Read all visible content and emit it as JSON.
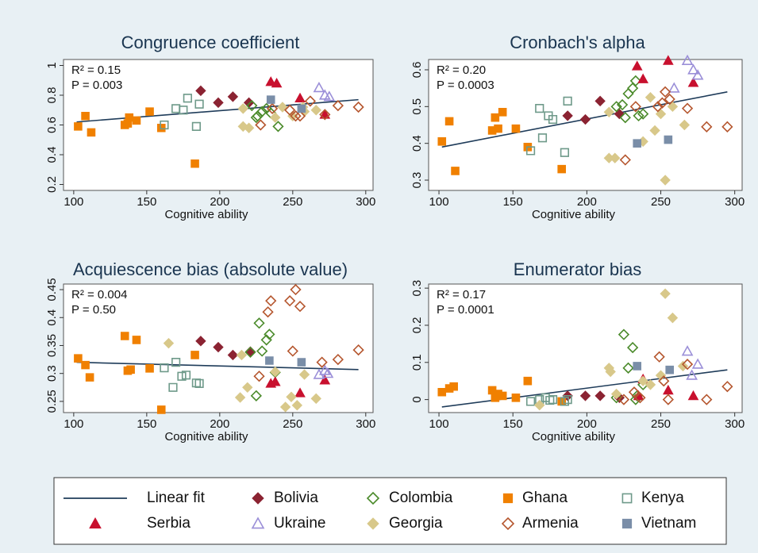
{
  "chart_data": [
    {
      "type": "scatter",
      "title": "Congruence coefficient",
      "xlabel": "Cognitive ability",
      "annotations": [
        "R² = 0.15",
        "P = 0.003"
      ],
      "xlim": [
        93,
        305
      ],
      "ylim": [
        0.16,
        1.04
      ],
      "xticks": [
        100,
        150,
        200,
        250,
        300
      ],
      "yticks": [
        0.2,
        0.4,
        0.6,
        0.8,
        1
      ],
      "fit": {
        "name": "Linear fit",
        "color": "#1f3c5a",
        "x": [
          102,
          295
        ],
        "y": [
          0.62,
          0.77
        ]
      },
      "series": [
        {
          "name": "Bolivia",
          "color": "#8b2332",
          "marker": "diamond",
          "filled": true,
          "x": [
            187,
            199,
            209,
            220
          ],
          "y": [
            0.83,
            0.75,
            0.79,
            0.75
          ]
        },
        {
          "name": "Colombia",
          "color": "#4a8a2a",
          "marker": "diamond",
          "filled": false,
          "x": [
            222,
            225,
            229,
            232,
            235,
            240,
            226
          ],
          "y": [
            0.73,
            0.65,
            0.69,
            0.71,
            0.68,
            0.59,
            0.66
          ]
        },
        {
          "name": "Ghana",
          "color": "#f08000",
          "marker": "square",
          "filled": true,
          "x": [
            103,
            108,
            112,
            135,
            138,
            143,
            152,
            160,
            183,
            137
          ],
          "y": [
            0.59,
            0.66,
            0.55,
            0.6,
            0.65,
            0.63,
            0.69,
            0.58,
            0.34,
            0.61
          ]
        },
        {
          "name": "Kenya",
          "color": "#6f9a8a",
          "marker": "square",
          "filled": false,
          "x": [
            162,
            170,
            175,
            178,
            184,
            186
          ],
          "y": [
            0.6,
            0.71,
            0.7,
            0.78,
            0.59,
            0.74
          ]
        },
        {
          "name": "Serbia",
          "color": "#c8102e",
          "marker": "triangle",
          "filled": true,
          "x": [
            235,
            239,
            255,
            272
          ],
          "y": [
            0.89,
            0.88,
            0.78,
            0.67
          ]
        },
        {
          "name": "Ukraine",
          "color": "#9b8fd8",
          "marker": "triangle",
          "filled": false,
          "x": [
            268,
            272,
            275
          ],
          "y": [
            0.85,
            0.8,
            0.79
          ]
        },
        {
          "name": "Georgia",
          "color": "#d8c88a",
          "marker": "diamond",
          "filled": true,
          "x": [
            216,
            220,
            216,
            238,
            243,
            250,
            257,
            258,
            266
          ],
          "y": [
            0.59,
            0.58,
            0.71,
            0.65,
            0.72,
            0.66,
            0.72,
            0.69,
            0.7
          ]
        },
        {
          "name": "Armenia",
          "color": "#b5562e",
          "marker": "diamond",
          "filled": false,
          "x": [
            228,
            236,
            248,
            252,
            255,
            262,
            272,
            281,
            295
          ],
          "y": [
            0.6,
            0.71,
            0.7,
            0.66,
            0.66,
            0.76,
            0.67,
            0.73,
            0.72
          ]
        },
        {
          "name": "Vietnam",
          "color": "#7a8ea8",
          "marker": "square",
          "filled": true,
          "x": [
            235,
            256
          ],
          "y": [
            0.77,
            0.71
          ]
        }
      ]
    },
    {
      "type": "scatter",
      "title": "Cronbach's alpha",
      "xlabel": "Cognitive ability",
      "annotations": [
        "R² = 0.20",
        "P = 0.0003"
      ],
      "xlim": [
        93,
        305
      ],
      "ylim": [
        0.272,
        0.628
      ],
      "xticks": [
        100,
        150,
        200,
        250,
        300
      ],
      "yticks": [
        0.3,
        0.4,
        0.5,
        0.6
      ],
      "fit": {
        "name": "Linear fit",
        "color": "#1f3c5a",
        "x": [
          102,
          295
        ],
        "y": [
          0.39,
          0.54
        ]
      },
      "series": [
        {
          "name": "Bolivia",
          "color": "#8b2332",
          "marker": "diamond",
          "filled": true,
          "x": [
            187,
            199,
            209,
            222
          ],
          "y": [
            0.475,
            0.465,
            0.515,
            0.48
          ]
        },
        {
          "name": "Colombia",
          "color": "#4a8a2a",
          "marker": "diamond",
          "filled": false,
          "x": [
            220,
            224,
            226,
            228,
            231,
            233,
            235,
            238
          ],
          "y": [
            0.5,
            0.505,
            0.47,
            0.535,
            0.55,
            0.57,
            0.475,
            0.48
          ]
        },
        {
          "name": "Ghana",
          "color": "#f08000",
          "marker": "square",
          "filled": true,
          "x": [
            102,
            107,
            111,
            136,
            138,
            140,
            143,
            152,
            160,
            183
          ],
          "y": [
            0.405,
            0.46,
            0.325,
            0.435,
            0.47,
            0.44,
            0.485,
            0.44,
            0.39,
            0.33
          ]
        },
        {
          "name": "Kenya",
          "color": "#6f9a8a",
          "marker": "square",
          "filled": false,
          "x": [
            162,
            168,
            170,
            174,
            177,
            185,
            187
          ],
          "y": [
            0.38,
            0.495,
            0.415,
            0.475,
            0.465,
            0.375,
            0.515
          ]
        },
        {
          "name": "Serbia",
          "color": "#c8102e",
          "marker": "triangle",
          "filled": true,
          "x": [
            234,
            238,
            255,
            272
          ],
          "y": [
            0.61,
            0.575,
            0.625,
            0.565
          ]
        },
        {
          "name": "Ukraine",
          "color": "#9b8fd8",
          "marker": "triangle",
          "filled": false,
          "x": [
            259,
            268,
            272,
            275
          ],
          "y": [
            0.55,
            0.625,
            0.6,
            0.585
          ]
        },
        {
          "name": "Georgia",
          "color": "#d8c88a",
          "marker": "diamond",
          "filled": true,
          "x": [
            215,
            219,
            215,
            238,
            243,
            246,
            250,
            253,
            258,
            266
          ],
          "y": [
            0.36,
            0.36,
            0.485,
            0.405,
            0.525,
            0.435,
            0.48,
            0.3,
            0.5,
            0.45
          ]
        },
        {
          "name": "Armenia",
          "color": "#b5562e",
          "marker": "diamond",
          "filled": false,
          "x": [
            226,
            233,
            248,
            251,
            253,
            256,
            268,
            281,
            295
          ],
          "y": [
            0.355,
            0.5,
            0.5,
            0.51,
            0.54,
            0.52,
            0.495,
            0.445,
            0.445
          ]
        },
        {
          "name": "Vietnam",
          "color": "#7a8ea8",
          "marker": "square",
          "filled": true,
          "x": [
            234,
            255
          ],
          "y": [
            0.4,
            0.41
          ]
        }
      ]
    },
    {
      "type": "scatter",
      "title": "Acquiescence bias (absolute value)",
      "xlabel": "Cognitive ability",
      "annotations": [
        "R² = 0.004",
        "P = 0.50"
      ],
      "xlim": [
        93,
        305
      ],
      "ylim": [
        0.23,
        0.46
      ],
      "xticks": [
        100,
        150,
        200,
        250,
        300
      ],
      "yticks": [
        0.25,
        0.3,
        0.35,
        0.4,
        0.45
      ],
      "fit": {
        "name": "Linear fit",
        "color": "#1f3c5a",
        "x": [
          102,
          295
        ],
        "y": [
          0.32,
          0.307
        ]
      },
      "series": [
        {
          "name": "Bolivia",
          "color": "#8b2332",
          "marker": "diamond",
          "filled": true,
          "x": [
            187,
            199,
            209,
            221
          ],
          "y": [
            0.358,
            0.347,
            0.333,
            0.339
          ]
        },
        {
          "name": "Colombia",
          "color": "#4a8a2a",
          "marker": "diamond",
          "filled": false,
          "x": [
            221,
            225,
            227,
            229,
            232,
            234,
            238
          ],
          "y": [
            0.338,
            0.26,
            0.39,
            0.34,
            0.36,
            0.37,
            0.302
          ]
        },
        {
          "name": "Ghana",
          "color": "#f08000",
          "marker": "square",
          "filled": true,
          "x": [
            103,
            108,
            111,
            135,
            137,
            139,
            143,
            152,
            160,
            183
          ],
          "y": [
            0.327,
            0.315,
            0.293,
            0.367,
            0.305,
            0.307,
            0.36,
            0.309,
            0.235,
            0.333
          ]
        },
        {
          "name": "Kenya",
          "color": "#6f9a8a",
          "marker": "square",
          "filled": false,
          "x": [
            162,
            168,
            170,
            174,
            177,
            184,
            186
          ],
          "y": [
            0.31,
            0.275,
            0.32,
            0.295,
            0.297,
            0.283,
            0.282
          ]
        },
        {
          "name": "Serbia",
          "color": "#c8102e",
          "marker": "triangle",
          "filled": true,
          "x": [
            235,
            238,
            255,
            272
          ],
          "y": [
            0.282,
            0.285,
            0.265,
            0.288
          ]
        },
        {
          "name": "Ukraine",
          "color": "#9b8fd8",
          "marker": "triangle",
          "filled": false,
          "x": [
            268,
            272,
            274
          ],
          "y": [
            0.298,
            0.305,
            0.3
          ]
        },
        {
          "name": "Georgia",
          "color": "#d8c88a",
          "marker": "diamond",
          "filled": true,
          "x": [
            165,
            215,
            214,
            219,
            238,
            245,
            249,
            253,
            258,
            266
          ],
          "y": [
            0.354,
            0.333,
            0.257,
            0.275,
            0.303,
            0.24,
            0.258,
            0.243,
            0.298,
            0.255
          ]
        },
        {
          "name": "Armenia",
          "color": "#b5562e",
          "marker": "diamond",
          "filled": false,
          "x": [
            227,
            233,
            235,
            248,
            250,
            252,
            255,
            270,
            281,
            295
          ],
          "y": [
            0.295,
            0.41,
            0.43,
            0.43,
            0.34,
            0.45,
            0.42,
            0.32,
            0.325,
            0.342
          ]
        },
        {
          "name": "Vietnam",
          "color": "#7a8ea8",
          "marker": "square",
          "filled": true,
          "x": [
            234,
            256
          ],
          "y": [
            0.323,
            0.32
          ]
        }
      ]
    },
    {
      "type": "scatter",
      "title": "Enumerator bias",
      "xlabel": "Cognitive ability",
      "annotations": [
        "R² = 0.17",
        "P = 0.0001"
      ],
      "xlim": [
        93,
        305
      ],
      "ylim": [
        -0.035,
        0.311
      ],
      "xticks": [
        100,
        150,
        200,
        250,
        300
      ],
      "yticks": [
        0,
        0.1,
        0.2,
        0.3
      ],
      "fit": {
        "name": "Linear fit",
        "color": "#1f3c5a",
        "x": [
          102,
          295
        ],
        "y": [
          -0.02,
          0.08
        ]
      },
      "series": [
        {
          "name": "Bolivia",
          "color": "#8b2332",
          "marker": "diamond",
          "filled": true,
          "x": [
            187,
            199,
            209,
            222
          ],
          "y": [
            0.01,
            0.01,
            0.01,
            0.005
          ]
        },
        {
          "name": "Colombia",
          "color": "#4a8a2a",
          "marker": "diamond",
          "filled": false,
          "x": [
            220,
            225,
            228,
            231,
            234,
            238,
            233
          ],
          "y": [
            0.005,
            0.175,
            0.085,
            0.14,
            0.01,
            0.04,
            0.0
          ]
        },
        {
          "name": "Ghana",
          "color": "#f08000",
          "marker": "square",
          "filled": true,
          "x": [
            102,
            107,
            110,
            136,
            138,
            140,
            143,
            152,
            160,
            183
          ],
          "y": [
            0.02,
            0.03,
            0.035,
            0.025,
            0.005,
            0.015,
            0.01,
            0.005,
            0.05,
            -0.005
          ]
        },
        {
          "name": "Kenya",
          "color": "#6f9a8a",
          "marker": "square",
          "filled": false,
          "x": [
            162,
            168,
            172,
            175,
            177,
            185,
            187
          ],
          "y": [
            -0.005,
            0.0,
            0.005,
            -0.002,
            0.0,
            -0.005,
            0.0
          ]
        },
        {
          "name": "Serbia",
          "color": "#c8102e",
          "marker": "triangle",
          "filled": true,
          "x": [
            235,
            238,
            255,
            272
          ],
          "y": [
            0.01,
            0.055,
            0.025,
            0.01
          ]
        },
        {
          "name": "Ukraine",
          "color": "#9b8fd8",
          "marker": "triangle",
          "filled": false,
          "x": [
            268,
            271,
            275
          ],
          "y": [
            0.13,
            0.065,
            0.095
          ]
        },
        {
          "name": "Georgia",
          "color": "#d8c88a",
          "marker": "diamond",
          "filled": true,
          "x": [
            168,
            215,
            216,
            220,
            238,
            243,
            250,
            253,
            258,
            265
          ],
          "y": [
            -0.015,
            0.085,
            0.075,
            0.015,
            0.05,
            0.04,
            0.065,
            0.285,
            0.22,
            0.09
          ]
        },
        {
          "name": "Armenia",
          "color": "#b5562e",
          "marker": "diamond",
          "filled": false,
          "x": [
            225,
            232,
            236,
            249,
            252,
            255,
            268,
            281,
            295
          ],
          "y": [
            0.0,
            0.02,
            0.005,
            0.115,
            0.05,
            0.0,
            0.095,
            0.0,
            0.035
          ]
        },
        {
          "name": "Vietnam",
          "color": "#7a8ea8",
          "marker": "square",
          "filled": true,
          "x": [
            234,
            256
          ],
          "y": [
            0.09,
            0.08
          ]
        }
      ]
    }
  ]
}
